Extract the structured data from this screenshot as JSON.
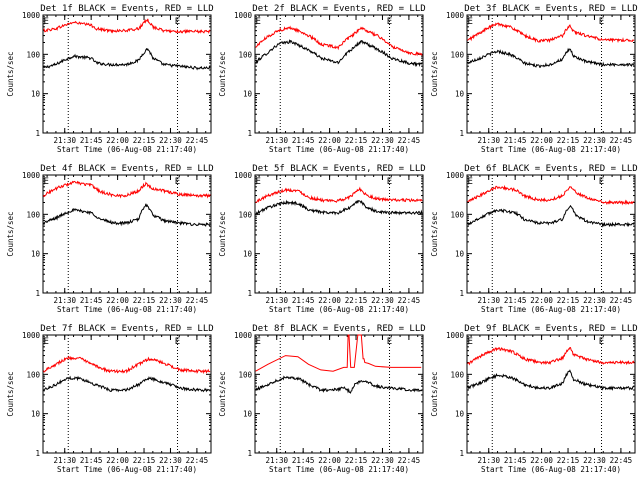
{
  "chart_data": {
    "type": "line",
    "layout": "3x3 grid",
    "xlabel": "Start Time (06-Aug-08 21:17:40)",
    "ylabel": "Counts/sec",
    "x_tick_labels": [
      "21:30",
      "21:45",
      "22:00",
      "22:15",
      "22:30",
      "22:45"
    ],
    "x_ticks_minutes": [
      30,
      45,
      60,
      75,
      90,
      105
    ],
    "x_range_minutes": [
      17.67,
      113
    ],
    "y_scale": "log",
    "ylim": [
      1,
      1000
    ],
    "y_tick_labels": [
      "1",
      "10",
      "100",
      "1000"
    ],
    "y_ticks": [
      1,
      10,
      100,
      1000
    ],
    "marker_label": "E",
    "marker_minutes": [
      19.5,
      94
    ],
    "dotted_lines_minutes": [
      32,
      94
    ],
    "colors": {
      "events": "#000000",
      "lld": "#ff0000"
    },
    "panels": [
      {
        "title": "Det 1f BLACK = Events, RED = LLD",
        "series": [
          {
            "key": "events",
            "x": [
              18,
              25,
              35,
              45,
              48,
              55,
              65,
              72,
              77,
              80,
              86,
              95,
              105,
              112
            ],
            "y": [
              45,
              55,
              90,
              80,
              60,
              55,
              55,
              70,
              140,
              80,
              55,
              50,
              45,
              45
            ]
          },
          {
            "key": "lld",
            "x": [
              18,
              25,
              35,
              45,
              48,
              55,
              65,
              72,
              77,
              80,
              86,
              95,
              105,
              112
            ],
            "y": [
              400,
              450,
              650,
              550,
              450,
              400,
              400,
              450,
              750,
              500,
              400,
              380,
              380,
              380
            ]
          }
        ]
      },
      {
        "title": "Det 2f BLACK = Events, RED = LLD",
        "series": [
          {
            "key": "events",
            "x": [
              18,
              25,
              32,
              38,
              45,
              55,
              65,
              72,
              78,
              85,
              95,
              105,
              112
            ],
            "y": [
              60,
              110,
              190,
              210,
              150,
              80,
              60,
              130,
              210,
              150,
              80,
              60,
              55
            ]
          },
          {
            "key": "lld",
            "x": [
              18,
              25,
              32,
              38,
              45,
              55,
              65,
              72,
              78,
              85,
              95,
              105,
              112
            ],
            "y": [
              150,
              280,
              420,
              470,
              350,
              180,
              150,
              280,
              450,
              330,
              160,
              110,
              100
            ]
          }
        ]
      },
      {
        "title": "Det 3f BLACK = Events, RED = LLD",
        "series": [
          {
            "key": "events",
            "x": [
              18,
              25,
              35,
              42,
              50,
              58,
              65,
              72,
              76,
              78,
              85,
              95,
              105,
              112
            ],
            "y": [
              60,
              80,
              120,
              100,
              60,
              50,
              55,
              75,
              140,
              90,
              65,
              55,
              55,
              55
            ]
          },
          {
            "key": "lld",
            "x": [
              18,
              25,
              35,
              42,
              50,
              58,
              65,
              72,
              76,
              78,
              85,
              95,
              105,
              112
            ],
            "y": [
              220,
              350,
              600,
              500,
              300,
              220,
              230,
              300,
              550,
              380,
              300,
              230,
              230,
              230
            ]
          }
        ]
      },
      {
        "title": "Det 4f BLACK = Events, RED = LLD",
        "series": [
          {
            "key": "events",
            "x": [
              18,
              25,
              35,
              45,
              50,
              58,
              65,
              72,
              76,
              80,
              86,
              95,
              105,
              112
            ],
            "y": [
              60,
              80,
              130,
              110,
              75,
              60,
              60,
              75,
              180,
              95,
              70,
              60,
              55,
              55
            ]
          },
          {
            "key": "lld",
            "x": [
              18,
              25,
              35,
              45,
              50,
              58,
              65,
              72,
              76,
              80,
              86,
              95,
              105,
              112
            ],
            "y": [
              300,
              450,
              650,
              550,
              380,
              300,
              300,
              400,
              600,
              450,
              400,
              320,
              300,
              300
            ]
          }
        ]
      },
      {
        "title": "Det 5f BLACK = Events, RED = LLD",
        "series": [
          {
            "key": "events",
            "x": [
              18,
              25,
              35,
              42,
              48,
              58,
              65,
              72,
              77,
              80,
              86,
              95,
              105,
              112
            ],
            "y": [
              100,
              150,
              200,
              190,
              130,
              110,
              110,
              150,
              230,
              160,
              120,
              110,
              110,
              110
            ]
          },
          {
            "key": "lld",
            "x": [
              18,
              25,
              35,
              42,
              48,
              58,
              65,
              72,
              77,
              80,
              86,
              95,
              105,
              112
            ],
            "y": [
              200,
              300,
              420,
              400,
              270,
              220,
              220,
              280,
              450,
              330,
              250,
              230,
              230,
              220
            ]
          }
        ]
      },
      {
        "title": "Det 6f BLACK = Events, RED = LLD",
        "series": [
          {
            "key": "events",
            "x": [
              18,
              25,
              35,
              45,
              50,
              58,
              65,
              72,
              76,
              80,
              86,
              95,
              105,
              112
            ],
            "y": [
              55,
              80,
              130,
              110,
              75,
              60,
              60,
              75,
              160,
              90,
              65,
              55,
              55,
              55
            ]
          },
          {
            "key": "lld",
            "x": [
              18,
              25,
              35,
              45,
              50,
              58,
              65,
              72,
              76,
              80,
              86,
              95,
              105,
              112
            ],
            "y": [
              200,
              300,
              500,
              420,
              300,
              230,
              230,
              300,
              500,
              350,
              260,
              200,
              200,
              200
            ]
          }
        ]
      },
      {
        "title": "Det 7f BLACK = Events, RED = LLD",
        "series": [
          {
            "key": "events",
            "x": [
              18,
              25,
              32,
              38,
              45,
              55,
              65,
              72,
              78,
              85,
              95,
              105,
              112
            ],
            "y": [
              40,
              55,
              80,
              80,
              60,
              40,
              40,
              55,
              80,
              65,
              45,
              40,
              40
            ]
          },
          {
            "key": "lld",
            "x": [
              18,
              25,
              32,
              38,
              45,
              55,
              65,
              72,
              78,
              85,
              95,
              105,
              112
            ],
            "y": [
              120,
              180,
              260,
              260,
              180,
              120,
              120,
              180,
              250,
              200,
              130,
              120,
              120
            ]
          }
        ]
      },
      {
        "title": "Det 8f BLACK = Events, RED = LLD",
        "series": [
          {
            "key": "events",
            "x": [
              18,
              25,
              35,
              42,
              48,
              55,
              62,
              68,
              72,
              75,
              80,
              86,
              95,
              105,
              112
            ],
            "y": [
              40,
              55,
              85,
              80,
              55,
              40,
              40,
              45,
              35,
              60,
              70,
              50,
              45,
              40,
              40
            ]
          },
          {
            "key": "lld",
            "x": [
              18,
              25,
              35,
              42,
              48,
              55,
              62,
              68,
              70,
              70.5,
              71,
              72,
              74,
              76,
              78,
              79,
              79.5,
              80,
              82,
              86,
              95,
              105,
              112
            ],
            "y": [
              120,
              180,
              300,
              280,
              180,
              130,
              120,
              150,
              150,
              1000,
              1000,
              150,
              150,
              1000,
              1000,
              250,
              250,
              200,
              190,
              160,
              150,
              150,
              150
            ]
          }
        ]
      },
      {
        "title": "Det 9f BLACK = Events, RED = LLD",
        "series": [
          {
            "key": "events",
            "x": [
              18,
              25,
              35,
              42,
              50,
              58,
              65,
              72,
              76,
              78,
              85,
              95,
              105,
              112
            ],
            "y": [
              45,
              60,
              95,
              85,
              55,
              45,
              45,
              60,
              130,
              75,
              55,
              45,
              45,
              45
            ]
          },
          {
            "key": "lld",
            "x": [
              18,
              25,
              35,
              42,
              50,
              58,
              65,
              72,
              76,
              78,
              85,
              95,
              105,
              112
            ],
            "y": [
              180,
              280,
              450,
              400,
              250,
              200,
              200,
              260,
              480,
              320,
              240,
              200,
              200,
              200
            ]
          }
        ]
      }
    ]
  }
}
